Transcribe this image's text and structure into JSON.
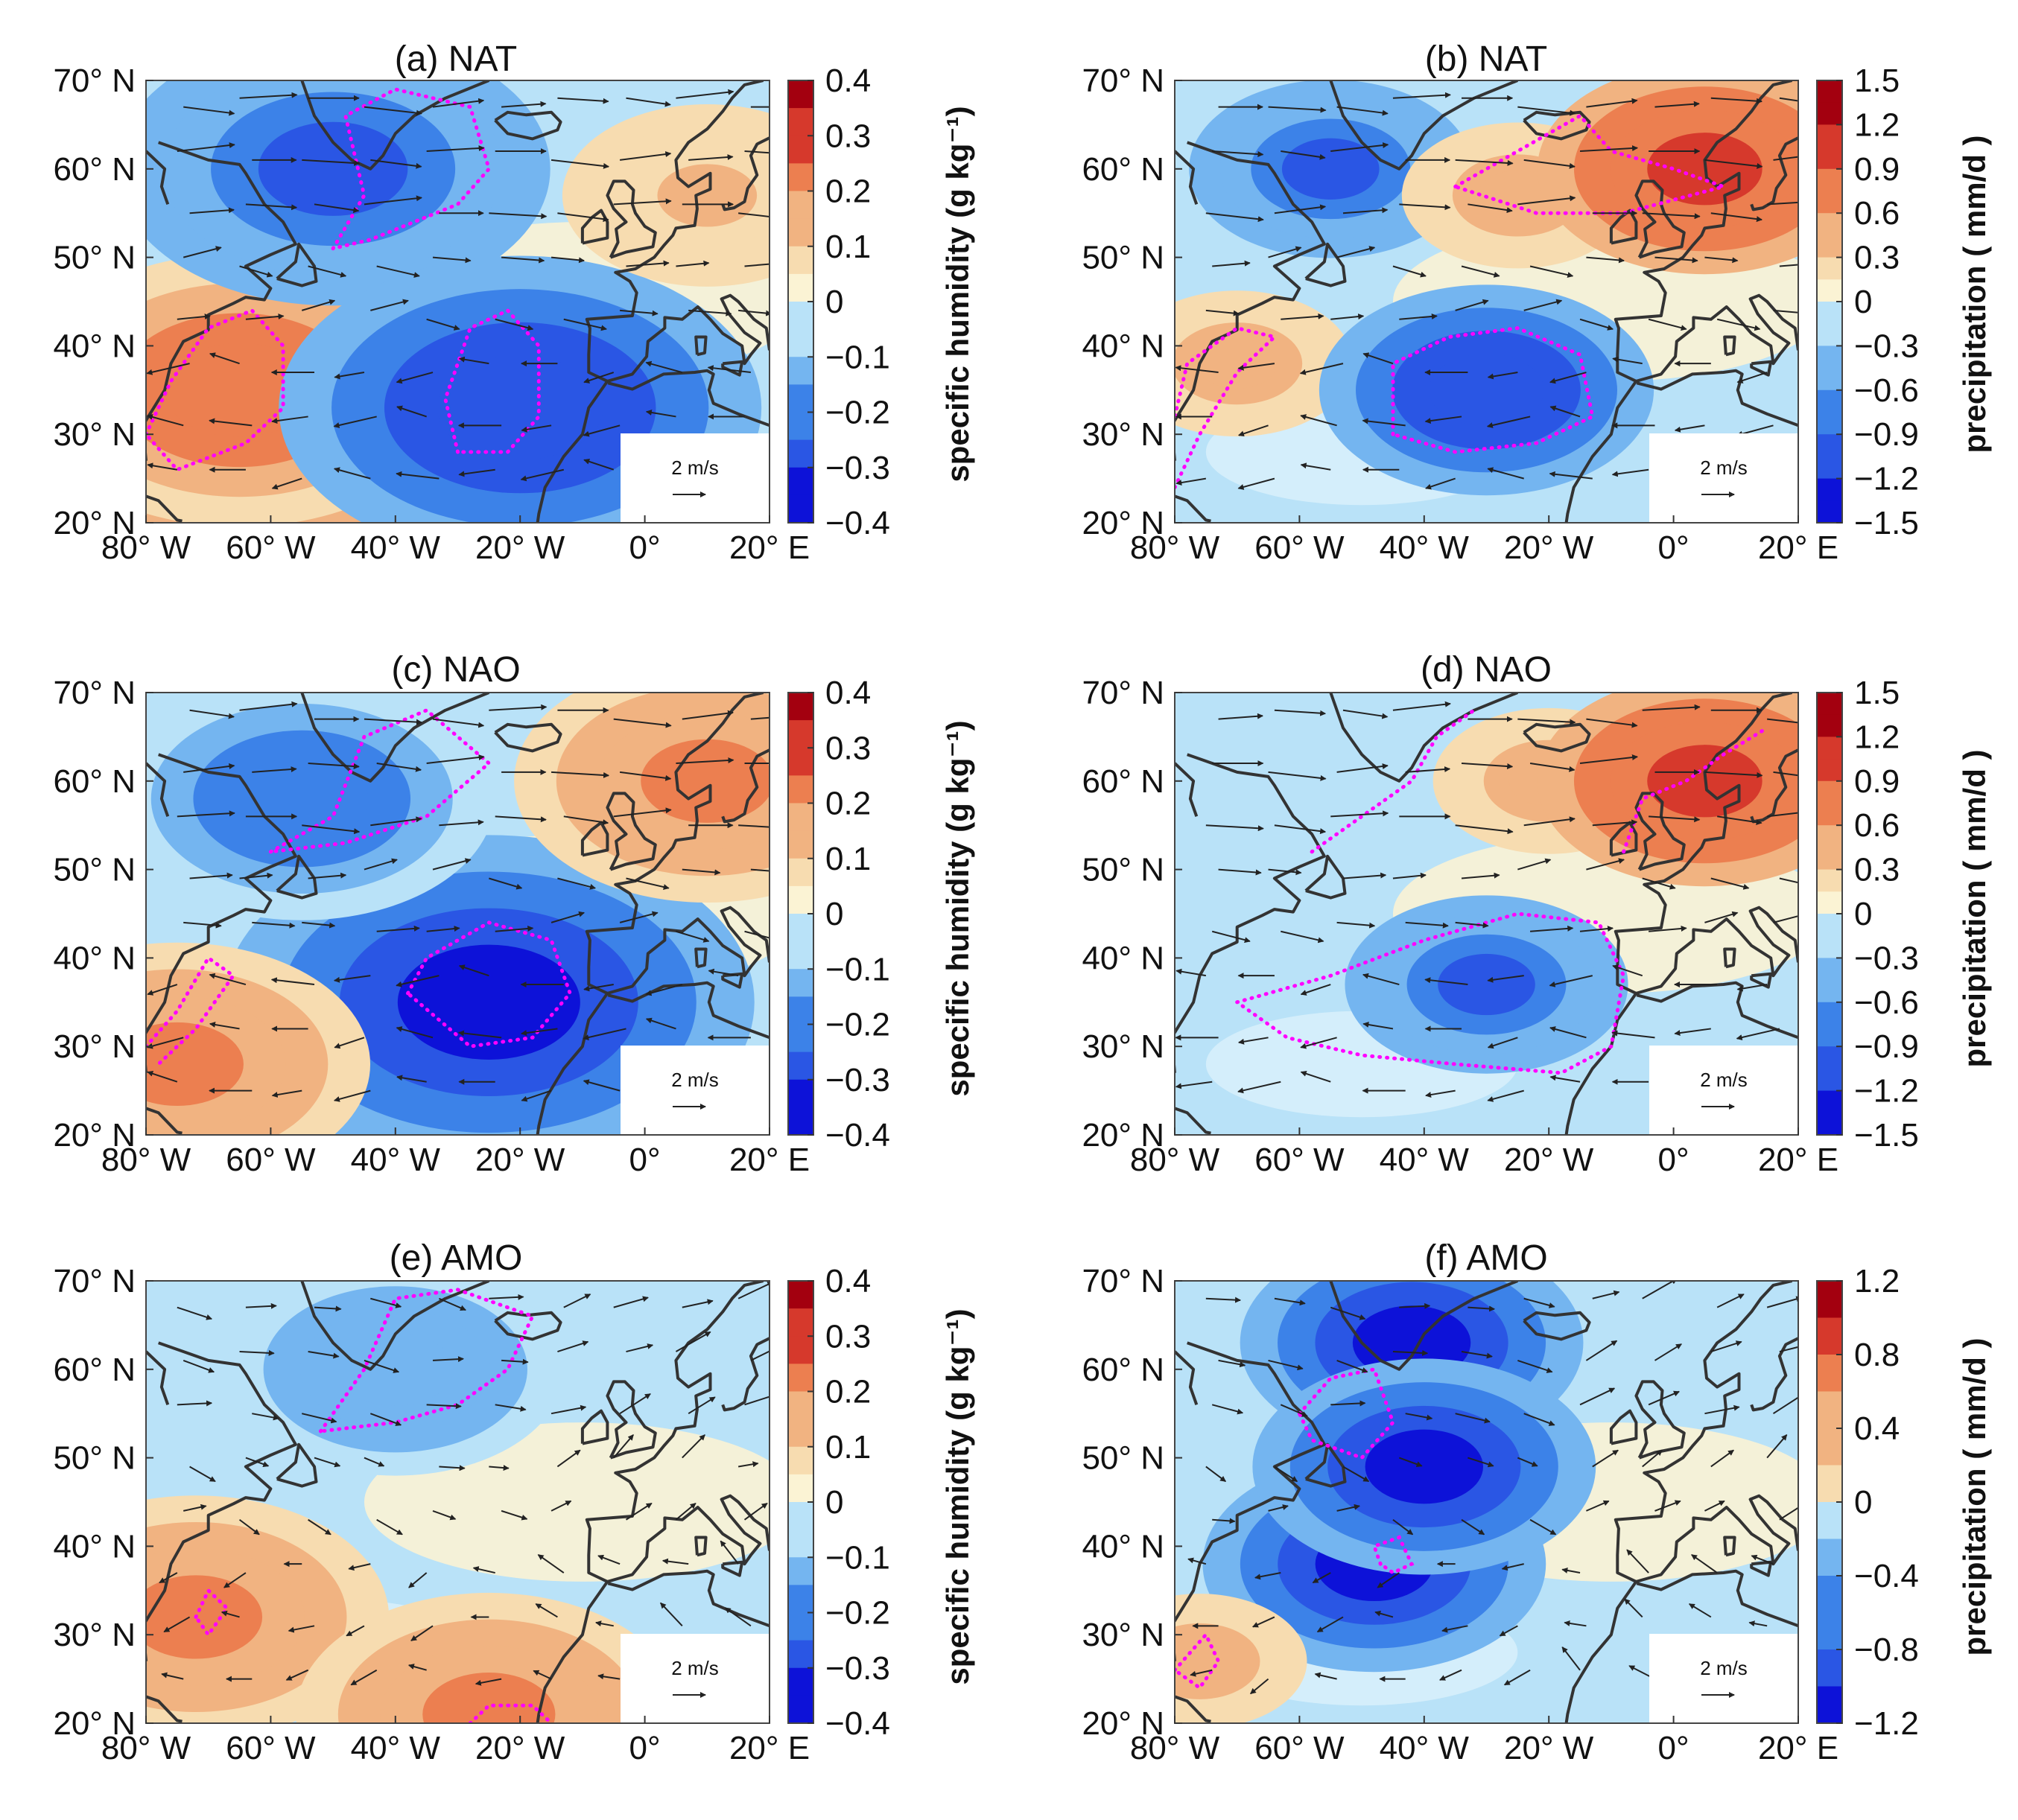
{
  "figure": {
    "lat_ticks": [
      "70° N",
      "60° N",
      "50° N",
      "40° N",
      "30° N",
      "20° N"
    ],
    "lon_ticks": [
      "80° W",
      "60° W",
      "40° W",
      "20° W",
      "0°",
      "20° E"
    ],
    "lat_range": [
      20,
      70
    ],
    "lon_range": [
      -80,
      20
    ],
    "wind_scale_label": "2 m/s",
    "colors": {
      "neg_deep": "#1a12d6",
      "neg_mid": "#3c82e8",
      "neg_light": "#9ed2f5",
      "near_zero": "#fbf3d4",
      "pos_light": "#f3c79a",
      "pos_mid": "#ec7f50",
      "pos_deep": "#a3000f",
      "significance": "#ff00ff",
      "coast": "#333333"
    }
  },
  "chart_data": [
    {
      "id": "a",
      "type": "heatmap",
      "title": "(a) NAT",
      "field": "specific humidity",
      "colorbar_label": "specific humidity (g kg⁻¹)",
      "colorbar_ticks": [
        "0.4",
        "0.3",
        "0.2",
        "0.1",
        "0",
        "−0.1",
        "−0.2",
        "−0.3",
        "−0.4"
      ],
      "colorbar_range": [
        -0.4,
        0.4
      ],
      "features": [
        {
          "lon": -70,
          "lat": 31,
          "value": 0.3
        },
        {
          "lon": -65,
          "lat": 35,
          "value": 0.25
        },
        {
          "lon": -50,
          "lat": 60,
          "value": -0.25
        },
        {
          "lon": -20,
          "lat": 33,
          "value": -0.3
        },
        {
          "lon": 10,
          "lat": 57,
          "value": 0.1
        }
      ]
    },
    {
      "id": "b",
      "type": "heatmap",
      "title": "(b) NAT",
      "field": "precipitation",
      "colorbar_label": "precipitation ( mm/d )",
      "colorbar_ticks": [
        "1.5",
        "1.2",
        "0.9",
        "0.6",
        "0.3",
        "0",
        "−0.3",
        "−0.6",
        "−0.9",
        "−1.2",
        "−1.5"
      ],
      "colorbar_range": [
        -1.5,
        1.5
      ],
      "features": [
        {
          "lon": -70,
          "lat": 38,
          "value": 0.6
        },
        {
          "lon": -30,
          "lat": 35,
          "value": -1.2
        },
        {
          "lon": -55,
          "lat": 60,
          "value": -0.9
        },
        {
          "lon": -25,
          "lat": 57,
          "value": 0.6
        },
        {
          "lon": 5,
          "lat": 60,
          "value": 1.2
        }
      ]
    },
    {
      "id": "c",
      "type": "heatmap",
      "title": "(c) NAO",
      "field": "specific humidity",
      "colorbar_label": "specific humidity (g kg⁻¹)",
      "colorbar_ticks": [
        "0.4",
        "0.3",
        "0.2",
        "0.1",
        "0",
        "−0.1",
        "−0.2",
        "−0.3",
        "−0.4"
      ],
      "colorbar_range": [
        -0.4,
        0.4
      ],
      "features": [
        {
          "lon": -25,
          "lat": 35,
          "value": -0.35
        },
        {
          "lon": -55,
          "lat": 58,
          "value": -0.2
        },
        {
          "lon": 10,
          "lat": 60,
          "value": 0.2
        },
        {
          "lon": -75,
          "lat": 28,
          "value": 0.2
        }
      ]
    },
    {
      "id": "d",
      "type": "heatmap",
      "title": "(d) NAO",
      "field": "precipitation",
      "colorbar_label": "precipitation ( mm/d )",
      "colorbar_ticks": [
        "1.5",
        "1.2",
        "0.9",
        "0.6",
        "0.3",
        "0",
        "−0.3",
        "−0.6",
        "−0.9",
        "−1.2",
        "−1.5"
      ],
      "colorbar_range": [
        -1.5,
        1.5
      ],
      "features": [
        {
          "lon": -30,
          "lat": 37,
          "value": -0.9
        },
        {
          "lon": -20,
          "lat": 60,
          "value": 0.6
        },
        {
          "lon": 5,
          "lat": 60,
          "value": 1.2
        }
      ]
    },
    {
      "id": "e",
      "type": "heatmap",
      "title": "(e) AMO",
      "field": "specific humidity",
      "colorbar_label": "specific humidity (g kg⁻¹)",
      "colorbar_ticks": [
        "0.4",
        "0.3",
        "0.2",
        "0.1",
        "0",
        "−0.1",
        "−0.2",
        "−0.3",
        "−0.4"
      ],
      "colorbar_range": [
        -0.4,
        0.4
      ],
      "features": [
        {
          "lon": -72,
          "lat": 32,
          "value": 0.2
        },
        {
          "lon": -25,
          "lat": 21,
          "value": 0.2
        },
        {
          "lon": -40,
          "lat": 60,
          "value": -0.15
        }
      ]
    },
    {
      "id": "f",
      "type": "heatmap",
      "title": "(f) AMO",
      "field": "precipitation",
      "colorbar_label": "precipitation ( mm/d )",
      "colorbar_ticks": [
        "1.2",
        "0.8",
        "0.4",
        "0",
        "−0.4",
        "−0.8",
        "−1.2"
      ],
      "colorbar_range": [
        -1.2,
        1.2
      ],
      "features": [
        {
          "lon": -42,
          "lat": 63,
          "value": -1.0
        },
        {
          "lon": -48,
          "lat": 38,
          "value": -1.0
        },
        {
          "lon": -40,
          "lat": 49,
          "value": -1.0
        },
        {
          "lon": -76,
          "lat": 27,
          "value": 0.4
        }
      ]
    }
  ]
}
